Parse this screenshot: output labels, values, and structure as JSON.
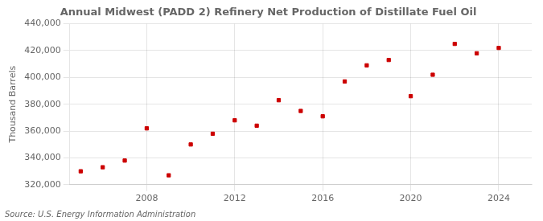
{
  "chart_data": {
    "type": "scatter",
    "title": "Annual Midwest (PADD 2) Refinery Net Production of Distillate Fuel Oil",
    "ylabel": "Thousand Barrels",
    "source": "Source: U.S. Energy Information Administration",
    "x": [
      2005,
      2006,
      2007,
      2008,
      2009,
      2010,
      2011,
      2012,
      2013,
      2014,
      2015,
      2016,
      2017,
      2018,
      2019,
      2020,
      2021,
      2022,
      2023,
      2024
    ],
    "values": [
      330000,
      333000,
      338000,
      362000,
      327000,
      350000,
      358000,
      368000,
      364000,
      383000,
      375000,
      371000,
      397000,
      409000,
      413000,
      386000,
      402000,
      425000,
      418000,
      422000
    ],
    "color": "#cc0000",
    "marker": "square",
    "xlim": [
      2004.5,
      2025.5
    ],
    "xticks": [
      2008,
      2012,
      2016,
      2020,
      2024
    ],
    "ylim": [
      320000,
      440000
    ],
    "yticks": [
      {
        "value": 320000,
        "label": "320,000"
      },
      {
        "value": 340000,
        "label": "340,000"
      },
      {
        "value": 360000,
        "label": "360,000"
      },
      {
        "value": 380000,
        "label": "380,000"
      },
      {
        "value": 400000,
        "label": "400,000"
      },
      {
        "value": 420000,
        "label": "420,000"
      },
      {
        "value": 440000,
        "label": "440,000"
      }
    ],
    "grid": true
  }
}
